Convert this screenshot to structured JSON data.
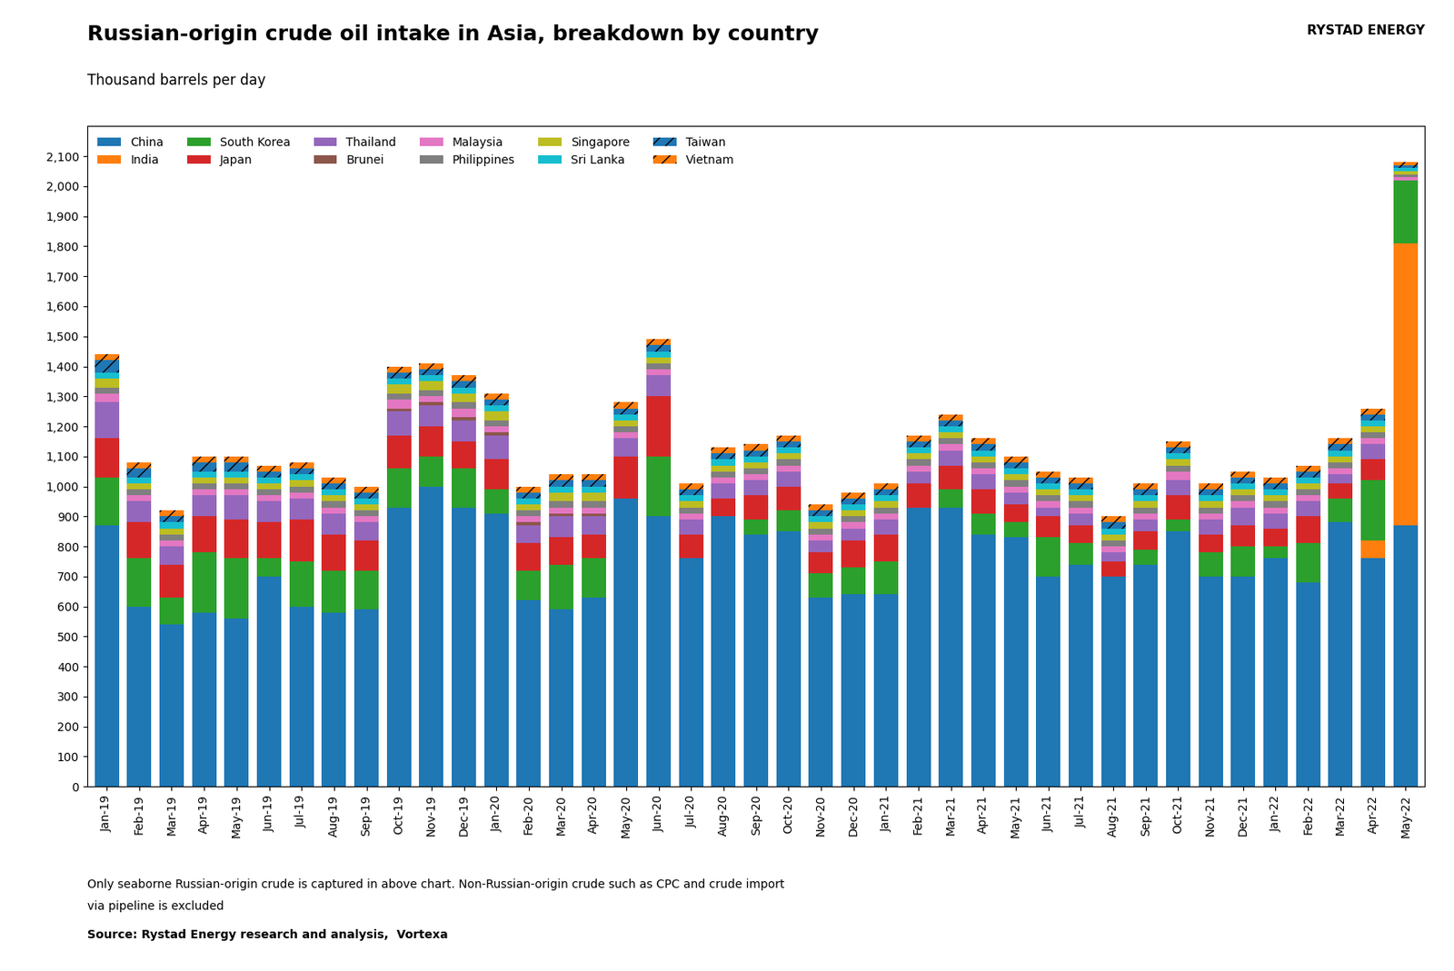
{
  "chart_data": {
    "type": "bar",
    "stacked": true,
    "title": "Russian-origin crude oil intake in Asia, breakdown by country",
    "subtitle": "Thousand barrels per day",
    "footnotes": [
      "Only seaborne Russian-origin crude is captured in above chart. Non-Russian-origin crude such as CPC and crude import",
      "via pipeline is excluded"
    ],
    "source": "Source: Rystad Energy research and analysis,  Vortexa",
    "annotations": [
      "RYSTAD ENERGY"
    ],
    "categories": [
      "Jan-19",
      "Feb-19",
      "Mar-19",
      "Apr-19",
      "May-19",
      "Jun-19",
      "Jul-19",
      "Aug-19",
      "Sep-19",
      "Oct-19",
      "Nov-19",
      "Dec-19",
      "Jan-20",
      "Feb-20",
      "Mar-20",
      "Apr-20",
      "May-20",
      "Jun-20",
      "Jul-20",
      "Aug-20",
      "Sep-20",
      "Oct-20",
      "Nov-20",
      "Dec-20",
      "Jan-21",
      "Feb-21",
      "Mar-21",
      "Apr-21",
      "May-21",
      "Jun-21",
      "Jul-21",
      "Aug-21",
      "Sep-21",
      "Oct-21",
      "Nov-21",
      "Dec-21",
      "Jan-22",
      "Feb-22",
      "Mar-22",
      "Apr-22",
      "May-22"
    ],
    "series": [
      {
        "name": "China",
        "values": [
          870,
          600,
          540,
          580,
          560,
          700,
          600,
          580,
          590,
          930,
          1000,
          930,
          910,
          620,
          590,
          630,
          960,
          900,
          760,
          900,
          840,
          850,
          630,
          640,
          640,
          930,
          930,
          840,
          830,
          700,
          740,
          700,
          740,
          850,
          700,
          700,
          760,
          680,
          880,
          760,
          870
        ]
      },
      {
        "name": "India",
        "values": [
          0,
          0,
          0,
          0,
          0,
          0,
          0,
          0,
          0,
          0,
          0,
          0,
          0,
          0,
          0,
          0,
          0,
          0,
          0,
          0,
          0,
          0,
          0,
          0,
          0,
          0,
          0,
          0,
          0,
          0,
          0,
          0,
          0,
          0,
          0,
          0,
          0,
          0,
          0,
          60,
          940
        ]
      },
      {
        "name": "South Korea",
        "values": [
          160,
          160,
          90,
          200,
          200,
          60,
          150,
          140,
          130,
          130,
          100,
          130,
          80,
          100,
          150,
          130,
          0,
          200,
          0,
          0,
          50,
          70,
          80,
          90,
          110,
          0,
          60,
          70,
          50,
          130,
          70,
          0,
          50,
          40,
          80,
          100,
          40,
          130,
          80,
          200,
          210
        ]
      },
      {
        "name": "Japan",
        "values": [
          130,
          120,
          110,
          120,
          130,
          120,
          140,
          120,
          100,
          110,
          100,
          90,
          100,
          90,
          90,
          80,
          140,
          200,
          80,
          60,
          80,
          80,
          70,
          90,
          90,
          80,
          80,
          80,
          60,
          70,
          60,
          50,
          60,
          80,
          60,
          70,
          60,
          90,
          50,
          70,
          0
        ]
      },
      {
        "name": "Thailand",
        "values": [
          120,
          70,
          60,
          70,
          80,
          70,
          70,
          70,
          60,
          80,
          70,
          70,
          80,
          60,
          70,
          60,
          60,
          70,
          50,
          50,
          50,
          50,
          40,
          40,
          50,
          40,
          50,
          50,
          40,
          30,
          40,
          30,
          40,
          50,
          50,
          60,
          50,
          50,
          30,
          50,
          0
        ]
      },
      {
        "name": "Brunei",
        "values": [
          0,
          0,
          0,
          0,
          0,
          0,
          0,
          0,
          0,
          10,
          10,
          10,
          10,
          10,
          10,
          10,
          0,
          0,
          0,
          0,
          0,
          0,
          0,
          0,
          0,
          0,
          0,
          0,
          0,
          0,
          0,
          0,
          0,
          0,
          0,
          0,
          0,
          0,
          0,
          0,
          0
        ]
      },
      {
        "name": "Malaysia",
        "values": [
          30,
          20,
          20,
          20,
          20,
          20,
          20,
          20,
          20,
          30,
          20,
          30,
          20,
          20,
          20,
          20,
          20,
          20,
          20,
          20,
          20,
          20,
          20,
          20,
          20,
          20,
          20,
          20,
          20,
          20,
          20,
          20,
          20,
          30,
          20,
          20,
          20,
          20,
          20,
          20,
          10
        ]
      },
      {
        "name": "Philippines",
        "values": [
          20,
          20,
          20,
          20,
          20,
          20,
          20,
          20,
          20,
          20,
          20,
          20,
          20,
          20,
          20,
          20,
          20,
          20,
          20,
          20,
          20,
          20,
          20,
          20,
          20,
          20,
          20,
          20,
          20,
          20,
          20,
          20,
          20,
          20,
          20,
          20,
          20,
          20,
          20,
          20,
          10
        ]
      },
      {
        "name": "Singapore",
        "values": [
          30,
          20,
          20,
          20,
          20,
          20,
          20,
          20,
          20,
          30,
          30,
          30,
          30,
          20,
          30,
          30,
          20,
          20,
          20,
          20,
          20,
          20,
          20,
          20,
          20,
          20,
          20,
          20,
          20,
          20,
          20,
          20,
          20,
          20,
          20,
          20,
          20,
          20,
          20,
          20,
          10
        ]
      },
      {
        "name": "Sri Lanka",
        "values": [
          20,
          20,
          20,
          20,
          20,
          20,
          20,
          20,
          20,
          20,
          20,
          20,
          20,
          20,
          20,
          20,
          20,
          20,
          20,
          20,
          20,
          20,
          20,
          20,
          20,
          20,
          20,
          20,
          20,
          20,
          20,
          20,
          20,
          20,
          20,
          20,
          20,
          20,
          20,
          20,
          10
        ]
      },
      {
        "name": "Taiwan",
        "values": [
          40,
          30,
          20,
          30,
          30,
          20,
          20,
          20,
          20,
          20,
          20,
          20,
          20,
          20,
          20,
          20,
          20,
          20,
          20,
          20,
          20,
          20,
          20,
          20,
          20,
          20,
          20,
          20,
          20,
          20,
          20,
          20,
          20,
          20,
          20,
          20,
          20,
          20,
          20,
          20,
          10
        ]
      },
      {
        "name": "Vietnam",
        "values": [
          20,
          20,
          20,
          20,
          20,
          20,
          20,
          20,
          20,
          20,
          20,
          20,
          20,
          20,
          20,
          20,
          20,
          20,
          20,
          20,
          20,
          20,
          20,
          20,
          20,
          20,
          20,
          20,
          20,
          20,
          20,
          20,
          20,
          20,
          20,
          20,
          20,
          20,
          20,
          20,
          10
        ]
      }
    ],
    "ylim": [
      0,
      2200
    ],
    "yticks": [
      0,
      100,
      200,
      300,
      400,
      500,
      600,
      700,
      800,
      900,
      {
        "value": 1000,
        "label": "1,000"
      },
      {
        "value": 1100,
        "label": "1,100"
      },
      {
        "value": 1200,
        "label": "1,200"
      },
      {
        "value": 1300,
        "label": "1,300"
      },
      {
        "value": 1400,
        "label": "1,400"
      },
      {
        "value": 1500,
        "label": "1,500"
      },
      {
        "value": 1600,
        "label": "1,600"
      },
      {
        "value": 1700,
        "label": "1,700"
      },
      {
        "value": 1800,
        "label": "1,800"
      },
      {
        "value": 1900,
        "label": "1,900"
      },
      {
        "value": 2000,
        "label": "2,000"
      },
      {
        "value": 2100,
        "label": "2,100"
      }
    ],
    "grid": false,
    "legend": "upper left"
  }
}
